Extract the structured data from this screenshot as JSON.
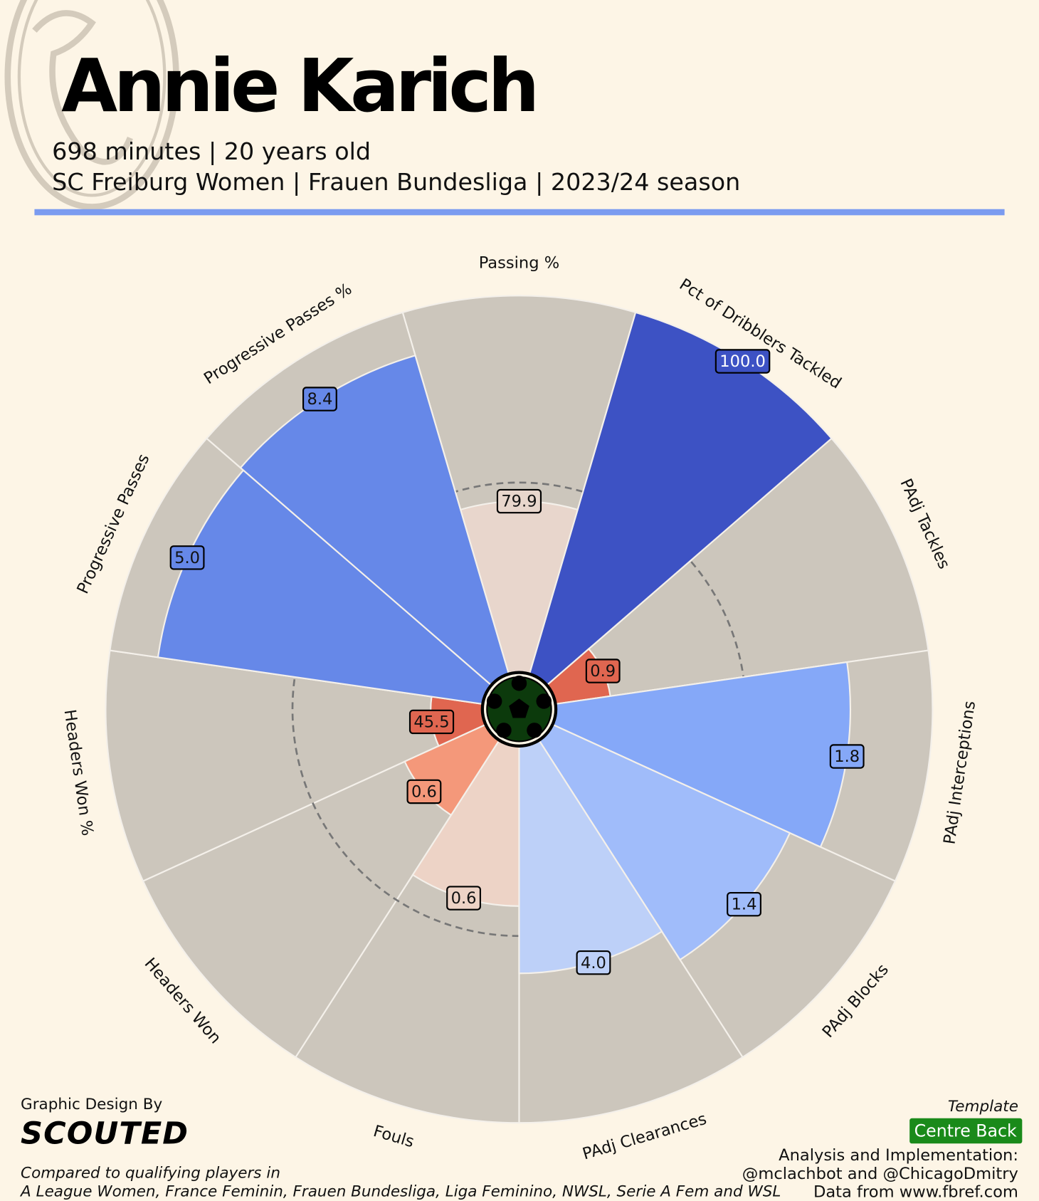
{
  "chart_data": {
    "type": "pizza",
    "title": "Annie Karich",
    "subtitle": [
      "698 minutes | 20 years old",
      "SC Freiburg Women | Frauen Bundesliga | 2023/24 season"
    ],
    "categories": [
      "Passing %",
      "Pct of Dribblers Tackled",
      "PAdj Tackles",
      "PAdj Interceptions",
      "PAdj Blocks",
      "PAdj Clearances",
      "Fouls",
      "Headers Won",
      "Headers Won %",
      "Progressive Passes",
      "Progressive Passes %"
    ],
    "values": [
      79.9,
      100,
      0.9,
      1.8,
      1.4,
      4,
      0.6,
      0.6,
      45.5,
      5,
      8.4
    ],
    "value_labels": [
      "79.9",
      "100.0",
      "0.9",
      "1.8",
      "1.4",
      "4.0",
      "0.6",
      "0.6",
      "45.5",
      "5.0",
      "8.4"
    ],
    "percentiles": [
      45,
      100,
      14,
      78,
      69,
      60,
      42,
      23,
      13,
      87,
      88
    ],
    "colors": [
      "#e8d6cc",
      "#3d52c4",
      "#e06650",
      "#85a8f8",
      "#a0bcfa",
      "#bdd0f8",
      "#edd3c6",
      "#f4987a",
      "#e06650",
      "#6688e8",
      "#6688e8"
    ],
    "rlim": [
      0,
      100
    ],
    "rticks": [
      50
    ],
    "footer": {
      "credit": "Graphic Design By",
      "brand": "SCOUTED",
      "comparison": [
        "Compared to qualifying players in",
        "A League Women, France Feminin, Frauen Bundesliga, Liga Feminino, NWSL, Serie A Fem and WSL"
      ],
      "template_label": "Template",
      "template": "Centre Back",
      "analysis": [
        "Analysis and Implementation:",
        "@mclachbot and @ChicagoDmitry",
        "Data from www.fbref.com"
      ]
    }
  }
}
